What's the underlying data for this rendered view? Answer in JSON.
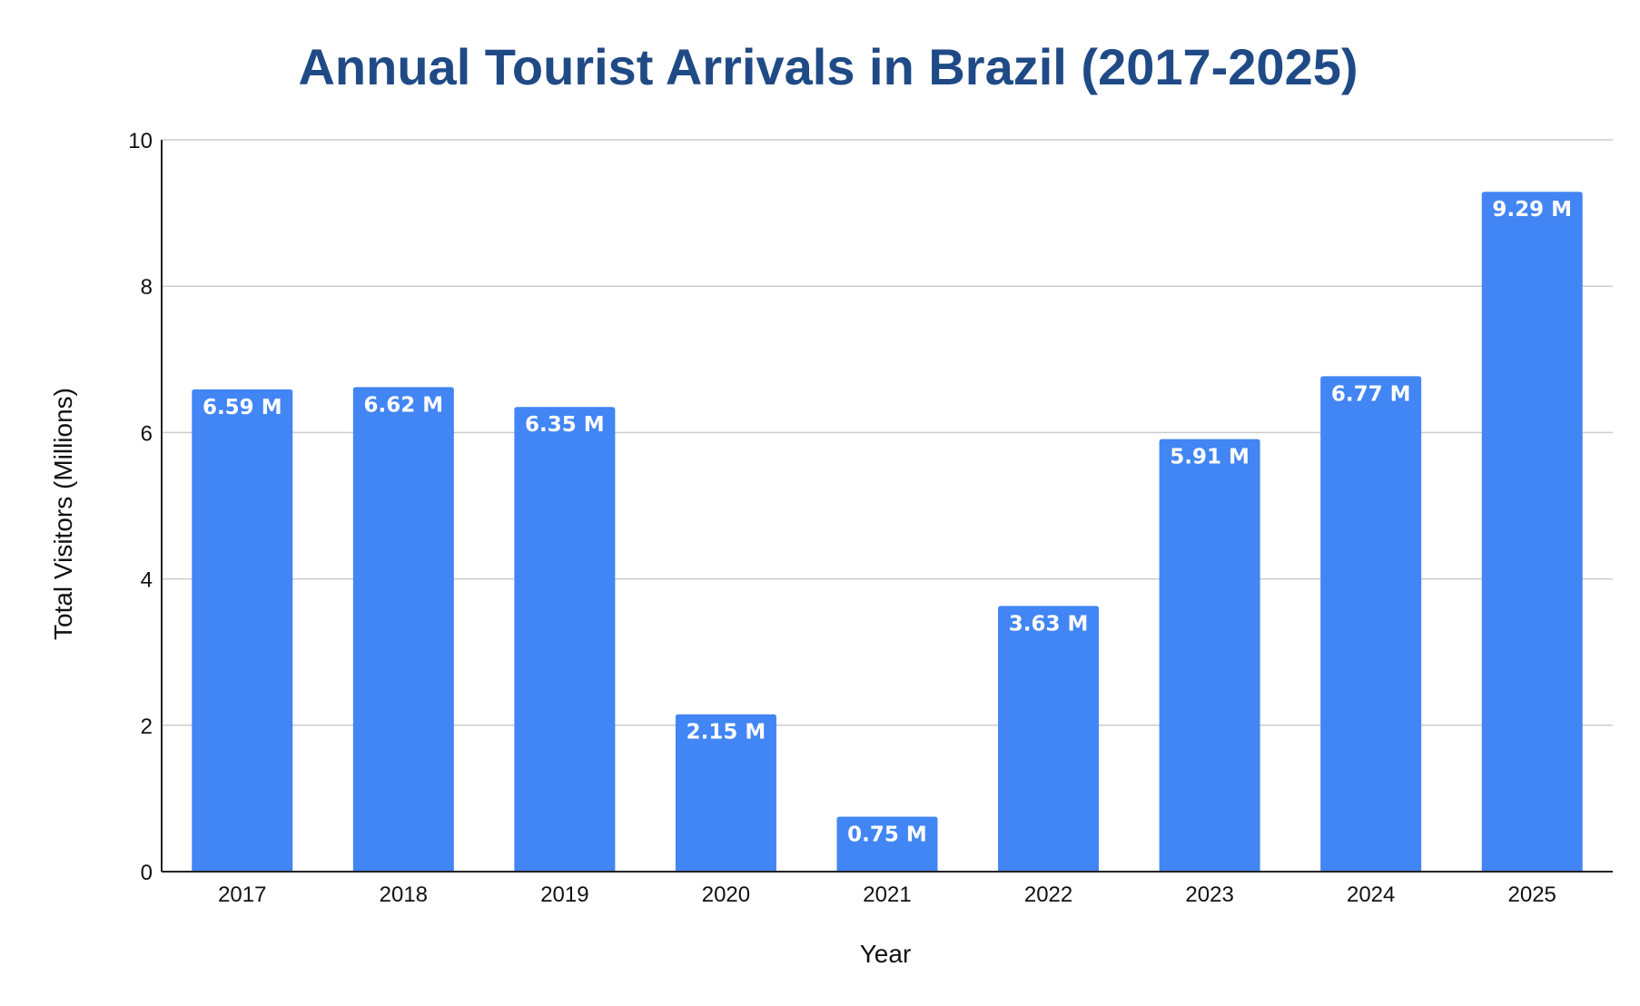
{
  "chart_data": {
    "type": "bar",
    "title": "Annual Tourist Arrivals in Brazil (2017-2025)",
    "xlabel": "Year",
    "ylabel": "Total Visitors (Millions)",
    "categories": [
      "2017",
      "2018",
      "2019",
      "2020",
      "2021",
      "2022",
      "2023",
      "2024",
      "2025"
    ],
    "values": [
      6.59,
      6.62,
      6.35,
      2.15,
      0.75,
      3.63,
      5.91,
      6.77,
      9.29
    ],
    "data_labels": [
      "6.59 M",
      "6.62 M",
      "6.35 M",
      "2.15 M",
      "0.75 M",
      "3.63 M",
      "5.91 M",
      "6.77 M",
      "9.29 M"
    ],
    "ylim": [
      0,
      10
    ],
    "yticks": [
      0,
      2,
      4,
      6,
      8,
      10
    ],
    "ytick_labels": [
      "0",
      "2",
      "4",
      "6",
      "8",
      "10"
    ],
    "grid": true,
    "legend": "none"
  },
  "colors": {
    "bar": "#4285f4",
    "title": "#1f4a86",
    "grid": "#cccccc",
    "axis": "#222222",
    "text": "#111111",
    "data_label": "#ffffff"
  }
}
